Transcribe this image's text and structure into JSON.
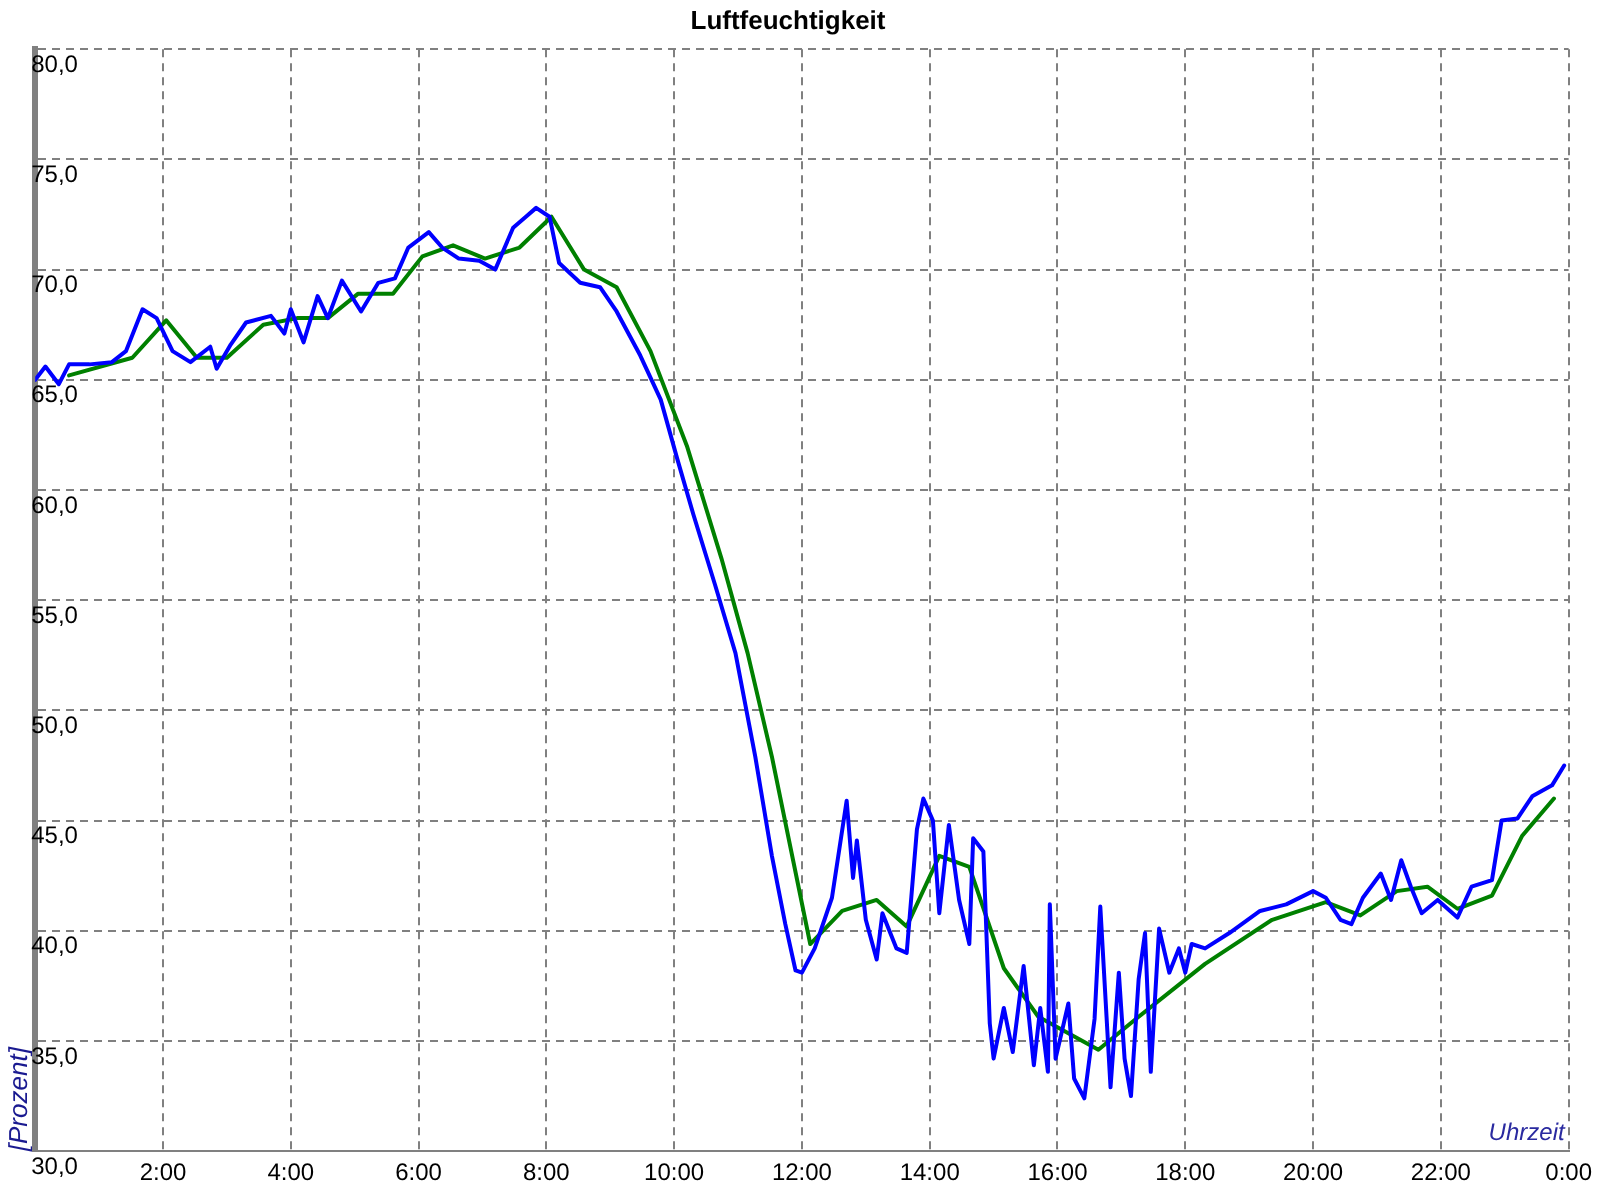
{
  "chart_data": {
    "type": "line",
    "title": "Luftfeuchtigkeit",
    "xlabel": "Uhrzeit",
    "ylabel": "[Prozent]",
    "xlim": [
      0,
      24
    ],
    "ylim": [
      30,
      80
    ],
    "xticks": [
      {
        "value": 0,
        "label": null
      },
      {
        "value": 2,
        "label": "2:00"
      },
      {
        "value": 4,
        "label": "4:00"
      },
      {
        "value": 6,
        "label": "6:00"
      },
      {
        "value": 8,
        "label": "8:00"
      },
      {
        "value": 10,
        "label": "10:00"
      },
      {
        "value": 12,
        "label": "12:00"
      },
      {
        "value": 14,
        "label": "14:00"
      },
      {
        "value": 16,
        "label": "16:00"
      },
      {
        "value": 18,
        "label": "18:00"
      },
      {
        "value": 20,
        "label": "20:00"
      },
      {
        "value": 22,
        "label": "22:00"
      },
      {
        "value": 24,
        "label": "0:00"
      }
    ],
    "yticks": [
      {
        "value": 30,
        "label": "30,0"
      },
      {
        "value": 35,
        "label": "35,0"
      },
      {
        "value": 40,
        "label": "40,0"
      },
      {
        "value": 45,
        "label": "45,0"
      },
      {
        "value": 50,
        "label": "50,0"
      },
      {
        "value": 55,
        "label": "55,0"
      },
      {
        "value": 60,
        "label": "60,0"
      },
      {
        "value": 65,
        "label": "65,0"
      },
      {
        "value": 70,
        "label": "70,0"
      },
      {
        "value": 75,
        "label": "75,0"
      },
      {
        "value": 80,
        "label": "80,0"
      }
    ],
    "grid": true,
    "legend": false,
    "marker": "none",
    "line_style": "solid",
    "series": [
      {
        "color": "#0000ff",
        "x": [
          0,
          0.16,
          0.37,
          0.53,
          0.85,
          1.2,
          1.42,
          1.68,
          1.9,
          2.15,
          2.43,
          2.74,
          2.84,
          3.06,
          3.3,
          3.69,
          3.9,
          4.0,
          4.2,
          4.42,
          4.58,
          4.8,
          5.1,
          5.37,
          5.63,
          5.84,
          6.16,
          6.37,
          6.63,
          6.95,
          7.2,
          7.48,
          7.68,
          7.84,
          8.05,
          8.2,
          8.53,
          8.84,
          9.1,
          9.47,
          9.79,
          10.05,
          10.3,
          10.64,
          10.96,
          11.27,
          11.53,
          11.74,
          11.9,
          12.0,
          12.2,
          12.47,
          12.7,
          12.8,
          12.86,
          13.0,
          13.17,
          13.26,
          13.48,
          13.64,
          13.8,
          13.9,
          14.05,
          14.15,
          14.3,
          14.46,
          14.62,
          14.68,
          14.84,
          14.94,
          15.0,
          15.16,
          15.3,
          15.47,
          15.63,
          15.73,
          15.85,
          15.88,
          15.97,
          16.17,
          16.26,
          16.42,
          16.58,
          16.67,
          16.83,
          16.96,
          17.05,
          17.15,
          17.27,
          17.37,
          17.46,
          17.59,
          17.75,
          17.9,
          18.0,
          18.1,
          18.31,
          18.69,
          19.17,
          19.58,
          20.0,
          20.2,
          20.43,
          20.6,
          20.78,
          21.06,
          21.22,
          21.38,
          21.53,
          21.7,
          21.95,
          22.26,
          22.48,
          22.8,
          22.95,
          23.2,
          23.43,
          23.74,
          23.93
        ],
        "values": [
          65.0,
          65.6,
          64.8,
          65.7,
          65.7,
          65.8,
          66.3,
          68.2,
          67.8,
          66.3,
          65.8,
          66.5,
          65.5,
          66.6,
          67.6,
          67.9,
          67.1,
          68.2,
          66.7,
          68.8,
          67.8,
          69.5,
          68.1,
          69.4,
          69.6,
          71.0,
          71.7,
          71.0,
          70.5,
          70.4,
          70.0,
          71.9,
          72.4,
          72.8,
          72.4,
          70.3,
          69.4,
          69.2,
          68.1,
          66.1,
          64.1,
          61.4,
          58.9,
          55.7,
          52.6,
          47.9,
          43.4,
          40.3,
          38.2,
          38.1,
          39.2,
          41.5,
          45.9,
          42.4,
          44.1,
          40.5,
          38.7,
          40.8,
          39.2,
          39.0,
          44.6,
          46.0,
          45.0,
          40.8,
          44.8,
          41.4,
          39.4,
          44.2,
          43.6,
          35.8,
          34.2,
          36.5,
          34.5,
          38.4,
          33.9,
          36.5,
          33.6,
          41.2,
          34.2,
          36.7,
          33.3,
          32.4,
          36.0,
          41.1,
          32.9,
          38.1,
          34.2,
          32.5,
          37.8,
          39.9,
          33.6,
          40.1,
          38.1,
          39.2,
          38.1,
          39.4,
          39.2,
          39.9,
          40.9,
          41.2,
          41.8,
          41.5,
          40.5,
          40.3,
          41.5,
          42.6,
          41.4,
          43.2,
          42.0,
          40.8,
          41.4,
          40.6,
          42.0,
          42.3,
          45.0,
          45.1,
          46.1,
          46.6,
          47.5
        ]
      },
      {
        "color": "#008000",
        "x": [
          0.53,
          1.52,
          2.05,
          2.53,
          3.0,
          3.57,
          4.1,
          4.58,
          5.05,
          5.6,
          6.06,
          6.54,
          7.04,
          7.58,
          8.08,
          8.59,
          9.1,
          9.63,
          10.2,
          10.74,
          11.15,
          11.53,
          12.13,
          12.63,
          13.17,
          13.64,
          14.15,
          14.62,
          15.16,
          15.7,
          16.64,
          17.27,
          18.31,
          19.36,
          20.2,
          20.74,
          21.31,
          21.79,
          22.26,
          22.8,
          23.27,
          23.77
        ],
        "values": [
          65.2,
          66.0,
          67.7,
          66.0,
          66.0,
          67.5,
          67.8,
          67.8,
          68.9,
          68.9,
          70.6,
          71.1,
          70.5,
          71.0,
          72.4,
          70.0,
          69.2,
          66.3,
          62.0,
          56.9,
          52.6,
          47.9,
          39.4,
          40.9,
          41.4,
          40.2,
          43.4,
          42.9,
          38.3,
          36.1,
          34.6,
          36.1,
          38.5,
          40.5,
          41.3,
          40.7,
          41.8,
          42.0,
          41.0,
          41.6,
          44.3,
          46.0
        ]
      }
    ]
  }
}
